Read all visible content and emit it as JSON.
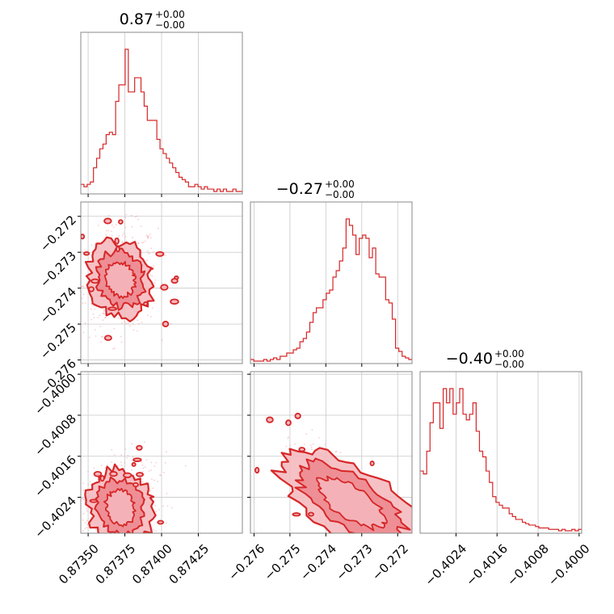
{
  "colors": {
    "accent": "#d62728",
    "fill_light": "#f4b6bb",
    "fill_mid": "#eb7e86",
    "scatter": "#f2a3aa",
    "grid": "#c8c8c8",
    "frame": "#888888"
  },
  "chart_data": {
    "type": "corner",
    "grid": true,
    "params": [
      {
        "title_value": "0.87",
        "title_plus": "+0.00",
        "title_minus": "−0.00",
        "range": [
          0.87345,
          0.87455
        ],
        "ticks": [
          0.8735,
          0.87375,
          0.874,
          0.87425
        ],
        "tick_labels": [
          "0.87350",
          "0.87375",
          "0.87400",
          "0.87425"
        ]
      },
      {
        "title_value": "−0.27",
        "title_plus": "+0.00",
        "title_minus": "−0.00",
        "range": [
          -0.2761,
          -0.2716
        ],
        "ticks": [
          -0.276,
          -0.275,
          -0.274,
          -0.273,
          -0.272
        ],
        "tick_labels": [
          "−0.276",
          "−0.275",
          "−0.274",
          "−0.273",
          "−0.272"
        ]
      },
      {
        "title_value": "−0.40",
        "title_plus": "+0.00",
        "title_minus": "−0.00",
        "range": [
          -0.4031,
          -0.39995
        ],
        "ticks": [
          -0.4024,
          -0.4016,
          -0.4008,
          -0.4
        ],
        "tick_labels": [
          "−0.4024",
          "−0.4016",
          "−0.4008",
          "−0.4000"
        ]
      }
    ],
    "histograms": [
      {
        "param": 0,
        "edges_start": 0.87345,
        "edges_end": 0.87455,
        "counts": [
          3,
          2,
          3,
          4,
          10,
          14,
          18,
          20,
          24,
          25,
          24,
          38,
          45,
          45,
          60,
          42,
          42,
          48,
          48,
          42,
          36,
          30,
          30,
          30,
          22,
          18,
          16,
          14,
          12,
          10,
          8,
          6,
          5,
          4,
          2,
          2,
          3,
          2,
          1,
          2,
          1,
          1,
          0,
          1,
          0,
          1,
          0,
          0,
          1,
          0,
          0
        ]
      },
      {
        "param": 1,
        "edges_start": -0.2761,
        "edges_end": -0.2716,
        "counts": [
          1,
          0,
          0,
          0,
          1,
          0,
          1,
          2,
          1,
          3,
          3,
          5,
          5,
          7,
          8,
          12,
          14,
          18,
          24,
          30,
          33,
          33,
          38,
          42,
          44,
          52,
          56,
          62,
          70,
          88,
          84,
          78,
          66,
          76,
          78,
          76,
          64,
          70,
          54,
          52,
          52,
          38,
          36,
          26,
          8,
          6,
          3,
          2,
          1
        ]
      },
      {
        "param": 2,
        "edges_start": -0.4031,
        "edges_end": -0.39995,
        "counts": [
          42,
          40,
          56,
          76,
          90,
          90,
          72,
          100,
          90,
          100,
          82,
          90,
          100,
          82,
          78,
          82,
          90,
          70,
          56,
          52,
          42,
          34,
          24,
          20,
          18,
          16,
          16,
          12,
          10,
          8,
          8,
          6,
          5,
          4,
          4,
          3,
          2,
          2,
          2,
          1,
          1,
          1,
          0,
          1,
          0,
          0,
          1,
          0,
          1
        ]
      }
    ],
    "pairs": [
      {
        "x_param": 0,
        "y_param": 1,
        "center": [
          0.87372,
          -0.27375
        ],
        "correlation": 0.1
      },
      {
        "x_param": 0,
        "y_param": 2,
        "center": [
          0.87372,
          -0.4026
        ],
        "correlation": 0.1
      },
      {
        "x_param": 1,
        "y_param": 2,
        "center": [
          -0.2733,
          -0.4025
        ],
        "correlation": -0.85
      }
    ]
  }
}
